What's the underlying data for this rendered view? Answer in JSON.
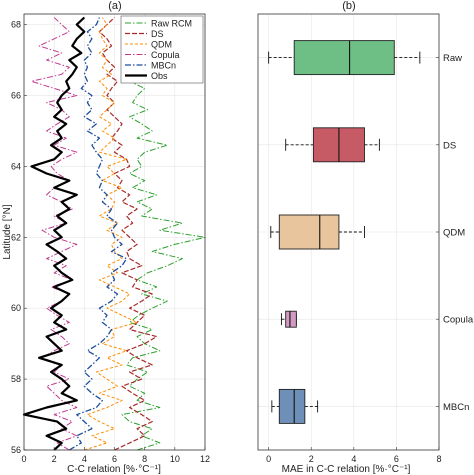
{
  "chart_data": [
    {
      "type": "line",
      "panel_label": "(a)",
      "xlabel": "C-C relation [%·°C⁻¹]",
      "ylabel": "Latitude [°N]",
      "xlim": [
        0,
        12
      ],
      "ylim": [
        56,
        68.3
      ],
      "xticks": [
        "0",
        "2",
        "4",
        "6",
        "8",
        "10",
        "12"
      ],
      "yticks": [
        "56",
        "58",
        "60",
        "62",
        "64",
        "66",
        "68"
      ],
      "grid": true,
      "legend_position": "top-right",
      "y": [
        56.0,
        56.2,
        56.4,
        56.6,
        56.8,
        57.0,
        57.2,
        57.4,
        57.6,
        57.8,
        58.0,
        58.2,
        58.4,
        58.6,
        58.8,
        59.0,
        59.2,
        59.4,
        59.6,
        59.8,
        60.0,
        60.2,
        60.4,
        60.6,
        60.8,
        61.0,
        61.2,
        61.4,
        61.6,
        61.8,
        62.0,
        62.2,
        62.4,
        62.6,
        62.8,
        63.0,
        63.2,
        63.4,
        63.6,
        63.8,
        64.0,
        64.2,
        64.4,
        64.6,
        64.8,
        65.0,
        65.2,
        65.4,
        65.6,
        65.8,
        66.0,
        66.2,
        66.4,
        66.6,
        66.8,
        67.0,
        67.2,
        67.4,
        67.6,
        67.8,
        68.0,
        68.2
      ],
      "series": [
        {
          "name": "Raw RCM",
          "color": "#2ca02c",
          "dash": "6,2,1.5,2",
          "width": 1.0,
          "values": [
            7.5,
            9.0,
            7.8,
            8.5,
            7.0,
            6.5,
            9.0,
            7.5,
            8.0,
            7.0,
            7.5,
            8.2,
            6.8,
            7.2,
            9.0,
            8.0,
            7.5,
            8.5,
            7.0,
            7.6,
            8.5,
            9.5,
            7.8,
            8.8,
            7.5,
            8.2,
            9.5,
            10.5,
            8.5,
            10.0,
            12.0,
            9.0,
            10.5,
            7.8,
            8.5,
            7.5,
            8.8,
            7.2,
            8.0,
            7.0,
            7.8,
            7.5,
            8.0,
            9.5,
            7.5,
            8.5,
            7.8,
            7.0,
            8.2,
            7.2,
            7.5,
            8.0,
            7.0,
            6.5,
            7.6,
            6.8,
            7.5,
            6.5,
            7.8,
            7.0,
            7.5,
            8.0
          ]
        },
        {
          "name": "DS",
          "color": "#a52a2a",
          "dash": "5,2",
          "width": 1.2,
          "values": [
            6.0,
            7.0,
            8.0,
            7.5,
            8.5,
            7.8,
            7.0,
            8.0,
            7.2,
            6.5,
            7.8,
            7.0,
            8.5,
            7.5,
            6.8,
            8.0,
            8.8,
            7.0,
            7.5,
            8.0,
            7.0,
            7.8,
            8.5,
            7.2,
            7.5,
            6.5,
            7.8,
            7.0,
            6.8,
            7.5,
            7.0,
            6.5,
            7.2,
            6.8,
            7.5,
            6.5,
            7.0,
            6.2,
            6.5,
            6.0,
            7.0,
            6.8,
            6.0,
            6.5,
            5.8,
            6.2,
            6.5,
            6.0,
            5.5,
            6.0,
            5.5,
            5.8,
            6.2,
            5.5,
            6.0,
            5.5,
            5.2,
            5.8,
            5.5,
            5.0,
            5.5,
            6.0
          ]
        },
        {
          "name": "QDM",
          "color": "#ff8c00",
          "dash": "3,2",
          "width": 1.0,
          "values": [
            4.0,
            5.5,
            4.5,
            6.0,
            5.0,
            4.2,
            5.5,
            6.5,
            5.0,
            6.2,
            5.5,
            4.8,
            6.5,
            5.5,
            6.8,
            5.2,
            6.0,
            5.8,
            7.5,
            6.5,
            5.5,
            6.5,
            7.0,
            6.0,
            5.0,
            6.2,
            5.5,
            6.5,
            6.0,
            5.8,
            6.5,
            5.5,
            6.2,
            5.0,
            5.8,
            6.0,
            5.5,
            6.5,
            5.2,
            6.0,
            5.5,
            6.8,
            5.0,
            5.5,
            6.0,
            5.2,
            5.8,
            5.0,
            5.5,
            6.0,
            5.2,
            5.5,
            5.0,
            5.8,
            5.2,
            5.5,
            5.0,
            5.5,
            5.2,
            5.0,
            5.5,
            5.2
          ]
        },
        {
          "name": "Copula",
          "color": "#c0398f",
          "dash": "6,2,1.5,2",
          "width": 1.0,
          "values": [
            3.0,
            2.2,
            3.5,
            2.5,
            3.2,
            2.0,
            3.5,
            2.5,
            2.0,
            1.5,
            3.0,
            2.0,
            2.5,
            1.2,
            2.0,
            3.0,
            2.5,
            1.8,
            3.0,
            2.2,
            1.5,
            2.5,
            3.0,
            1.8,
            3.2,
            2.0,
            2.8,
            1.5,
            2.5,
            3.5,
            2.0,
            1.2,
            2.8,
            2.0,
            3.2,
            2.5,
            1.5,
            2.0,
            3.0,
            2.2,
            1.8,
            2.5,
            3.5,
            2.0,
            2.8,
            1.5,
            2.2,
            3.0,
            2.5,
            1.5,
            3.5,
            2.0,
            0.5,
            2.5,
            3.0,
            1.5,
            2.5,
            1.0,
            2.0,
            3.0,
            2.5,
            2.0
          ]
        },
        {
          "name": "MBCn",
          "color": "#1f4e9c",
          "dash": "6,2,1.5,2",
          "width": 1.3,
          "values": [
            3.0,
            3.8,
            3.5,
            4.5,
            4.0,
            3.5,
            4.8,
            5.2,
            4.5,
            4.0,
            4.5,
            4.0,
            4.5,
            5.0,
            4.2,
            5.0,
            5.5,
            5.8,
            5.2,
            5.5,
            5.0,
            5.8,
            6.2,
            5.5,
            6.0,
            5.8,
            6.5,
            6.8,
            5.8,
            6.5,
            6.0,
            5.8,
            6.2,
            5.5,
            5.8,
            5.2,
            5.5,
            5.0,
            5.2,
            4.8,
            5.0,
            5.2,
            4.8,
            4.5,
            5.0,
            4.2,
            4.8,
            4.0,
            4.5,
            4.2,
            4.5,
            3.8,
            4.2,
            4.0,
            4.2,
            4.0,
            4.5,
            4.2,
            4.5,
            4.2,
            4.8,
            5.0
          ]
        },
        {
          "name": "Obs",
          "color": "#000000",
          "dash": "",
          "width": 2.2,
          "values": [
            2.0,
            2.5,
            1.5,
            2.8,
            2.2,
            0.0,
            1.5,
            3.5,
            2.5,
            3.0,
            2.5,
            1.8,
            2.5,
            1.0,
            2.5,
            2.0,
            1.5,
            2.8,
            2.0,
            2.5,
            1.8,
            2.5,
            3.0,
            2.0,
            3.2,
            2.5,
            2.0,
            2.8,
            2.2,
            1.5,
            2.5,
            2.0,
            2.8,
            2.2,
            3.0,
            2.5,
            3.5,
            2.0,
            3.0,
            1.5,
            0.5,
            2.0,
            2.5,
            1.8,
            2.5,
            2.2,
            2.8,
            2.0,
            2.5,
            2.2,
            2.5,
            3.0,
            2.8,
            3.2,
            3.5,
            3.0,
            3.8,
            3.2,
            3.5,
            4.0,
            3.5,
            4.0
          ]
        }
      ]
    },
    {
      "type": "box",
      "panel_label": "(b)",
      "xlabel": "MAE in C-C relation [%·°C⁻¹]",
      "xlim": [
        -0.5,
        8
      ],
      "xticks": [
        "0",
        "2",
        "4",
        "6",
        "8"
      ],
      "grid": true,
      "orientation": "horizontal",
      "boxes": [
        {
          "name": "Raw",
          "color": "#6dbf86",
          "whisker_low": 0.0,
          "q1": 1.2,
          "median": 3.8,
          "q3": 5.9,
          "whisker_high": 7.1
        },
        {
          "name": "DS",
          "color": "#c65b66",
          "whisker_low": 0.8,
          "q1": 2.1,
          "median": 3.3,
          "q3": 4.5,
          "whisker_high": 5.2
        },
        {
          "name": "QDM",
          "color": "#e8c59c",
          "whisker_low": 0.1,
          "q1": 0.5,
          "median": 2.4,
          "q3": 3.3,
          "whisker_high": 4.5
        },
        {
          "name": "Copula",
          "color": "#d49bc2",
          "whisker_low": 0.6,
          "q1": 0.8,
          "median": 1.0,
          "q3": 1.3,
          "whisker_high": 1.3
        },
        {
          "name": "MBCn",
          "color": "#6e90b8",
          "whisker_low": 0.15,
          "q1": 0.5,
          "median": 1.2,
          "q3": 1.7,
          "whisker_high": 2.3
        }
      ]
    }
  ]
}
